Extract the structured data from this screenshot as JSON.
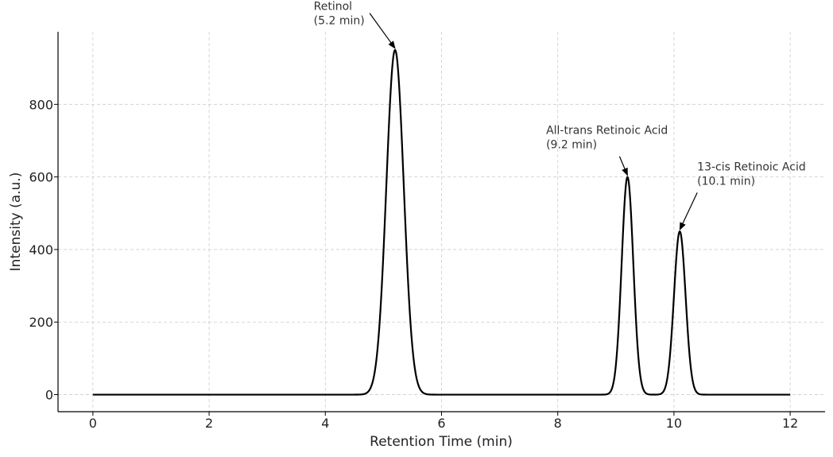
{
  "chart_data": {
    "type": "line",
    "title": "",
    "xlabel": "Retention Time (min)",
    "ylabel": "Intensity (a.u.)",
    "xlim": [
      -0.6,
      12.6
    ],
    "ylim": [
      -47,
      1000
    ],
    "xticks": [
      0,
      2,
      4,
      6,
      8,
      10,
      12
    ],
    "yticks": [
      0,
      200,
      400,
      600,
      800
    ],
    "grid": true,
    "line_color": "#000000",
    "series": [
      {
        "peaks": [
          {
            "center": 5.2,
            "height": 950,
            "sigma": 0.15
          },
          {
            "center": 9.2,
            "height": 600,
            "sigma": 0.1
          },
          {
            "center": 10.1,
            "height": 450,
            "sigma": 0.1
          }
        ],
        "x_range": [
          0,
          12
        ]
      }
    ],
    "annotations": [
      {
        "lines": [
          "Retinol",
          "(5.2 min)"
        ],
        "text_x": 3.8,
        "text_y": 1060,
        "target_x": 5.2,
        "target_y": 950
      },
      {
        "lines": [
          "All-trans Retinoic Acid",
          "(9.2 min)"
        ],
        "text_x": 7.8,
        "text_y": 718,
        "target_x": 9.2,
        "target_y": 600
      },
      {
        "lines": [
          "13-cis Retinoic Acid",
          "(10.1 min)"
        ],
        "text_x": 10.4,
        "text_y": 618,
        "target_x": 10.1,
        "target_y": 450
      }
    ]
  }
}
